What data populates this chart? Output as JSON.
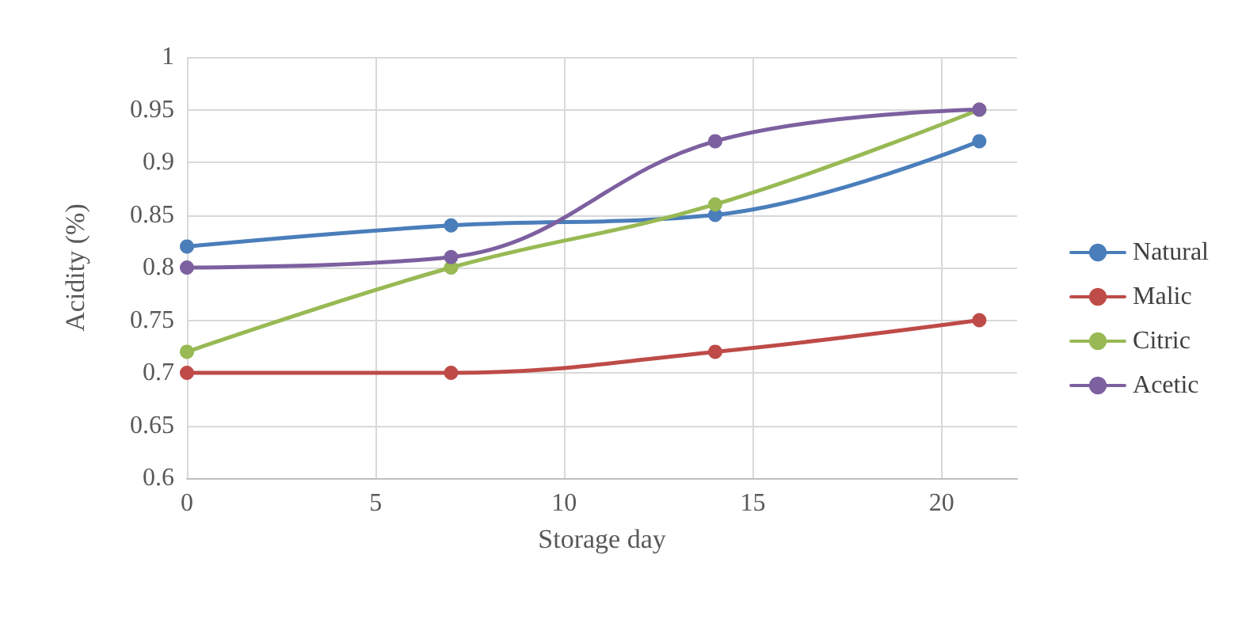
{
  "chart_data": {
    "type": "line",
    "xlabel": "Storage day",
    "ylabel": "Acidity (%)",
    "x": [
      0,
      7,
      14,
      21
    ],
    "series": [
      {
        "name": "Natural",
        "color": "#4a7ebb",
        "values": [
          0.82,
          0.84,
          0.85,
          0.92
        ]
      },
      {
        "name": "Malic",
        "color": "#be4b48",
        "values": [
          0.7,
          0.7,
          0.72,
          0.75
        ]
      },
      {
        "name": "Citric",
        "color": "#98b954",
        "values": [
          0.72,
          0.8,
          0.86,
          0.95
        ]
      },
      {
        "name": "Acetic",
        "color": "#7d60a0",
        "values": [
          0.8,
          0.81,
          0.92,
          0.95
        ]
      }
    ],
    "xlim": [
      0,
      22
    ],
    "xticks": [
      0,
      5,
      10,
      15,
      20
    ],
    "ylim": [
      0.6,
      1
    ],
    "yticks": [
      0.6,
      0.65,
      0.7,
      0.75,
      0.8,
      0.85,
      0.9,
      0.95,
      1
    ],
    "grid": true,
    "legend": "right",
    "marker": "circle",
    "line_style": "solid"
  }
}
